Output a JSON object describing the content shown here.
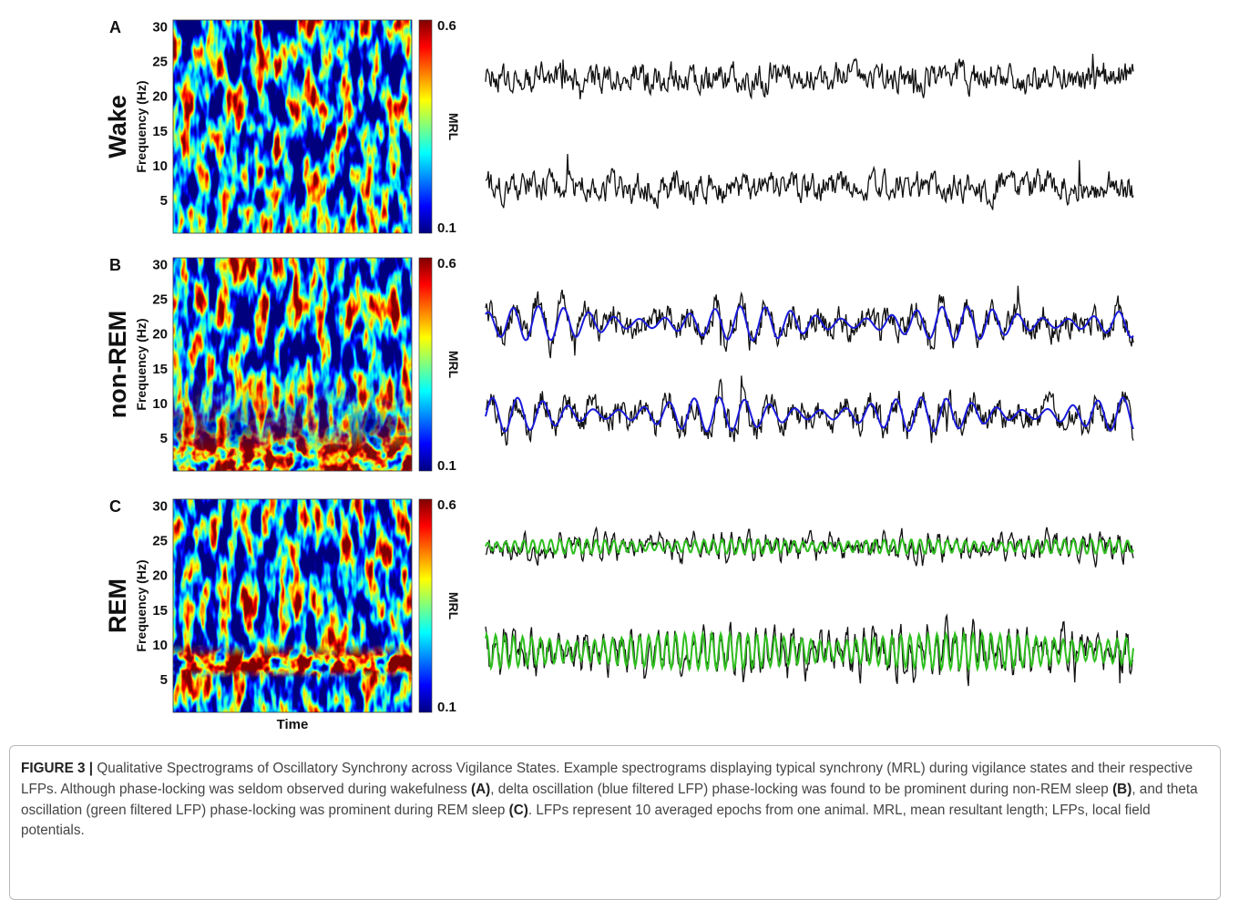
{
  "panels": [
    {
      "letter": "A",
      "state": "Wake"
    },
    {
      "letter": "B",
      "state": "non-REM"
    },
    {
      "letter": "C",
      "state": "REM"
    }
  ],
  "y_axis": {
    "label": "Frequency (Hz)",
    "ticks": [
      5,
      10,
      15,
      20,
      25,
      30
    ],
    "lim": [
      0.25,
      31
    ]
  },
  "colorbar": {
    "label": "MRL",
    "ticks": [
      0.1,
      0.6
    ],
    "lim": [
      0.1,
      0.6
    ]
  },
  "x_label": "Time",
  "caption": [
    {
      "text": "FIGURE 3 |",
      "bold": true
    },
    {
      "text": " Qualitative Spectrograms of Oscillatory Synchrony across Vigilance States. Example spectrograms displaying typical synchrony (MRL) during vigilance states and their respective LFPs. Although phase-locking was seldom observed during wakefulness ",
      "bold": false
    },
    {
      "text": "(A)",
      "bold": true
    },
    {
      "text": ", delta oscillation (blue filtered LFP) phase-locking was found to be prominent during non-REM sleep ",
      "bold": false
    },
    {
      "text": "(B)",
      "bold": true
    },
    {
      "text": ", and theta oscillation (green filtered LFP) phase-locking was prominent during REM sleep ",
      "bold": false
    },
    {
      "text": "(C)",
      "bold": true
    },
    {
      "text": ". LFPs represent 10 averaged epochs from one animal. MRL, mean resultant length; LFPs, local field potentials.",
      "bold": false
    }
  ]
}
